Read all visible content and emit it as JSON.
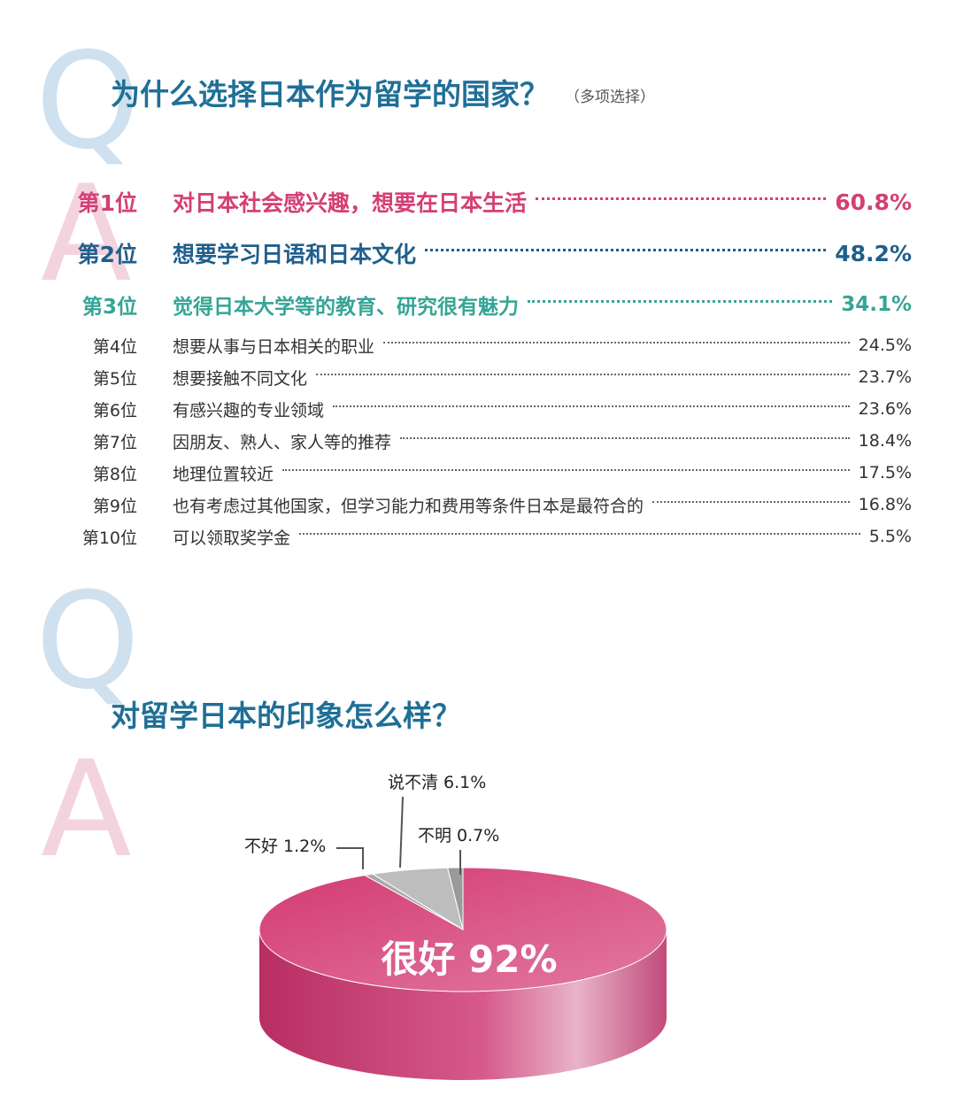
{
  "decor": {
    "q": "Q",
    "a": "A"
  },
  "section1": {
    "title": "为什么选择日本作为留学的国家？",
    "note": "（多项选择）"
  },
  "section2": {
    "title": "对留学日本的印象怎么样？"
  },
  "colors": {
    "rank1": "#d43f74",
    "rank2": "#1f5f8c",
    "rank3": "#35a596",
    "title": "#1f6f96",
    "pie_good": "#d8467c",
    "pie_gray": "#b8b8b8"
  },
  "chart_data": [
    {
      "type": "table",
      "title": "为什么选择日本作为留学的国家？",
      "rows": [
        {
          "rank": "第1位",
          "reason": "对日本社会感兴趣，想要在日本生活",
          "value": "60.8%"
        },
        {
          "rank": "第2位",
          "reason": "想要学习日语和日本文化",
          "value": "48.2%"
        },
        {
          "rank": "第3位",
          "reason": "觉得日本大学等的教育、研究很有魅力",
          "value": "34.1%"
        },
        {
          "rank": "第4位",
          "reason": "想要从事与日本相关的职业",
          "value": "24.5%"
        },
        {
          "rank": "第5位",
          "reason": "想要接触不同文化",
          "value": "23.7%"
        },
        {
          "rank": "第6位",
          "reason": "有感兴趣的专业领域",
          "value": "23.6%"
        },
        {
          "rank": "第7位",
          "reason": "因朋友、熟人、家人等的推荐",
          "value": "18.4%"
        },
        {
          "rank": "第8位",
          "reason": "地理位置较近",
          "value": "17.5%"
        },
        {
          "rank": "第9位",
          "reason": "也有考虑过其他国家，但学习能力和费用等条件日本是最符合的",
          "value": "16.8%"
        },
        {
          "rank": "第10位",
          "reason": "可以领取奖学金",
          "value": "5.5%"
        }
      ]
    },
    {
      "type": "pie",
      "title": "对留学日本的印象怎么样？",
      "slices": [
        {
          "label": "很好",
          "value": 92,
          "text": "92%"
        },
        {
          "label": "不明",
          "value": 0.7,
          "text": "0.7%"
        },
        {
          "label": "说不清",
          "value": 6.1,
          "text": "6.1%"
        },
        {
          "label": "不好",
          "value": 1.2,
          "text": "1.2%"
        }
      ]
    }
  ]
}
